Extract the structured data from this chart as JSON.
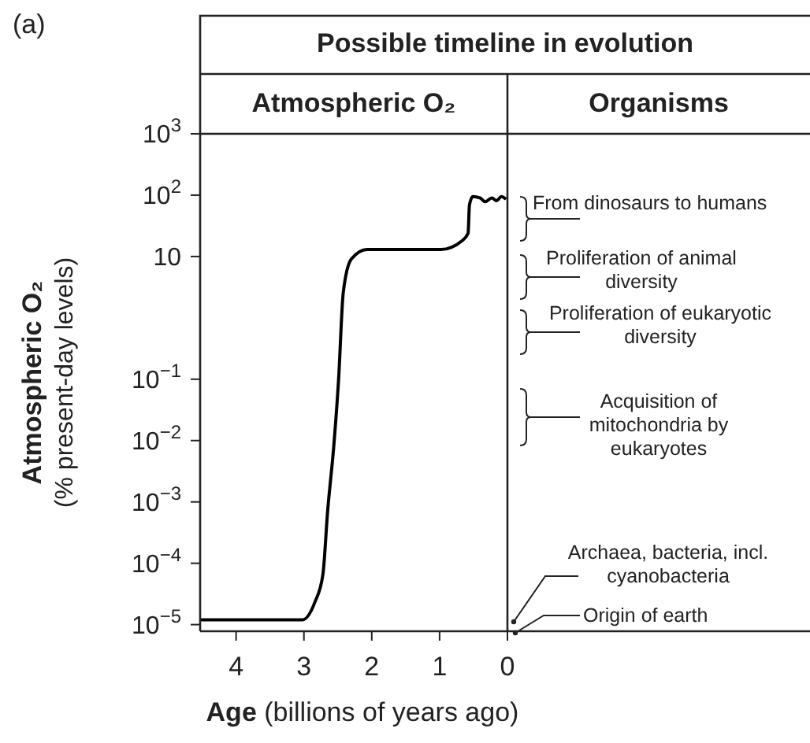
{
  "chart_data": {
    "type": "line",
    "title": "Possible timeline in evolution",
    "subtitle": "Atmospheric O₂",
    "xlabel": "Age (billions of years ago)",
    "ylabel": "Atmospheric O₂ (% present-day levels)",
    "x": [
      4.53,
      3.5,
      3.02,
      2.84,
      2.72,
      2.65,
      2.56,
      2.49,
      2.42,
      2.3,
      2.07,
      0.98,
      0.67,
      0.58,
      0.56,
      0.51,
      0.4,
      0.33,
      0.23,
      0.16,
      0.09,
      0.02
    ],
    "series": [
      {
        "color": "#000000",
        "values": [
          1.2e-05,
          1.2e-05,
          1.2e-05,
          2.3e-05,
          6.6e-05,
          0.00072,
          0.0081,
          0.095,
          2.6,
          9.1,
          13,
          13,
          18,
          24,
          69,
          95,
          90,
          78,
          90,
          81,
          95,
          86
        ]
      }
    ],
    "xlim": [
      4.53,
      0
    ],
    "xticks": [
      4,
      3,
      2,
      1,
      0
    ],
    "log": true,
    "ylim": [
      7.8e-06,
      1000
    ],
    "yticks": [
      {
        "value": 1000,
        "label": "10$^{3}$"
      },
      {
        "value": 100,
        "label": "10$^{2}$"
      },
      10,
      {
        "value": 0.1,
        "label": "10$^{−1}$"
      },
      {
        "value": 0.01,
        "label": "10$^{−2}$"
      },
      {
        "value": 0.001,
        "label": "10$^{−3}$"
      },
      {
        "value": 0.0001,
        "label": "10$^{−4}$"
      },
      {
        "value": 1e-05,
        "label": "10$^{−5}$"
      }
    ],
    "marker": "none",
    "line_style": "solid",
    "annotations": [
      "(a)",
      "Organisms",
      "From dinosaurs to humans",
      "Proliferation of animal diversity",
      "Proliferation of eukaryotic diversity",
      "Acquisition of mitochondria by eukaryotes",
      "Archaea, bacteria, incl. cyanobacteria",
      "Origin of earth"
    ]
  }
}
